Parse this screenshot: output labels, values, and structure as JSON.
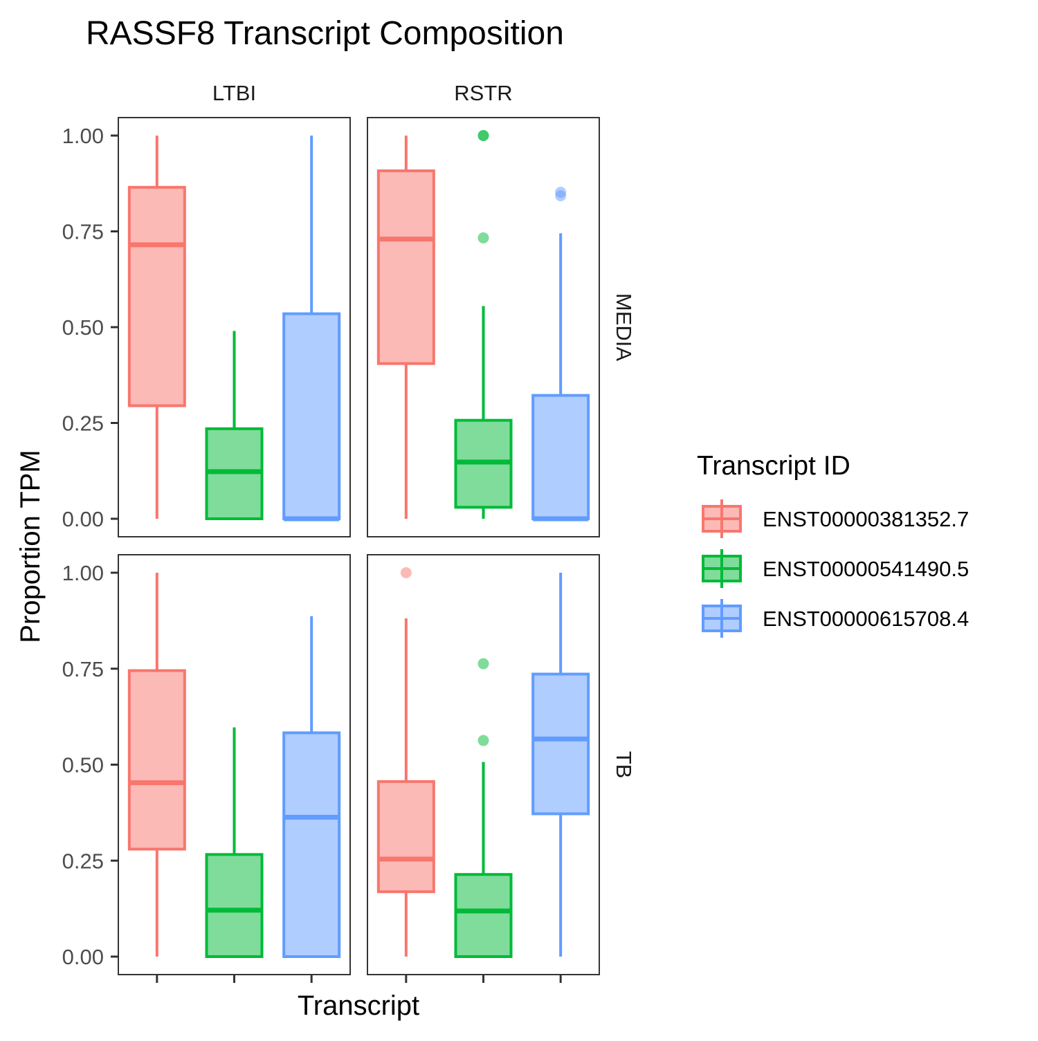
{
  "chart_data": {
    "type": "boxplot",
    "title": "RASSF8 Transcript Composition",
    "xlabel": "Transcript",
    "ylabel": "Proportion TPM",
    "ylim": [
      0,
      1
    ],
    "yticks": [
      "0.00",
      "0.25",
      "0.50",
      "0.75",
      "1.00"
    ],
    "col_facets": [
      "LTBI",
      "RSTR"
    ],
    "row_facets": [
      "MEDIA",
      "TB"
    ],
    "legend": {
      "title": "Transcript ID",
      "position": "right",
      "items": [
        {
          "label": "ENST00000381352.7",
          "color": "#F8766D"
        },
        {
          "label": "ENST00000541490.5",
          "color": "#00BA38"
        },
        {
          "label": "ENST00000615708.4",
          "color": "#619CFF"
        }
      ]
    },
    "grid": false,
    "panels": [
      {
        "col": "LTBI",
        "row": "MEDIA",
        "boxes": [
          {
            "series": "ENST00000381352.7",
            "min": 0.0,
            "q1": 0.295,
            "median": 0.715,
            "q3": 0.865,
            "max": 1.0,
            "outliers": []
          },
          {
            "series": "ENST00000541490.5",
            "min": 0.0,
            "q1": 0.0,
            "median": 0.123,
            "q3": 0.235,
            "max": 0.49,
            "outliers": []
          },
          {
            "series": "ENST00000615708.4",
            "min": 0.0,
            "q1": 0.0,
            "median": 0.0,
            "q3": 0.535,
            "max": 1.0,
            "outliers": []
          }
        ]
      },
      {
        "col": "RSTR",
        "row": "MEDIA",
        "boxes": [
          {
            "series": "ENST00000381352.7",
            "min": 0.0,
            "q1": 0.405,
            "median": 0.73,
            "q3": 0.908,
            "max": 1.0,
            "outliers": []
          },
          {
            "series": "ENST00000541490.5",
            "min": 0.0,
            "q1": 0.03,
            "median": 0.148,
            "q3": 0.257,
            "max": 0.555,
            "outliers": [
              0.733,
              1.0,
              1.0
            ]
          },
          {
            "series": "ENST00000615708.4",
            "min": 0.0,
            "q1": 0.0,
            "median": 0.0,
            "q3": 0.322,
            "max": 0.745,
            "outliers": [
              0.843,
              0.852
            ]
          }
        ]
      },
      {
        "col": "LTBI",
        "row": "TB",
        "boxes": [
          {
            "series": "ENST00000381352.7",
            "min": 0.0,
            "q1": 0.28,
            "median": 0.453,
            "q3": 0.745,
            "max": 1.0,
            "outliers": []
          },
          {
            "series": "ENST00000541490.5",
            "min": 0.0,
            "q1": 0.0,
            "median": 0.121,
            "q3": 0.266,
            "max": 0.597,
            "outliers": []
          },
          {
            "series": "ENST00000615708.4",
            "min": 0.0,
            "q1": 0.0,
            "median": 0.363,
            "q3": 0.583,
            "max": 0.887,
            "outliers": []
          }
        ]
      },
      {
        "col": "RSTR",
        "row": "TB",
        "boxes": [
          {
            "series": "ENST00000381352.7",
            "min": 0.0,
            "q1": 0.169,
            "median": 0.254,
            "q3": 0.456,
            "max": 0.881,
            "outliers": [
              1.0
            ]
          },
          {
            "series": "ENST00000541490.5",
            "min": 0.0,
            "q1": 0.0,
            "median": 0.119,
            "q3": 0.214,
            "max": 0.507,
            "outliers": [
              0.563,
              0.763
            ]
          },
          {
            "series": "ENST00000615708.4",
            "min": 0.0,
            "q1": 0.372,
            "median": 0.567,
            "q3": 0.736,
            "max": 1.0,
            "outliers": []
          }
        ]
      }
    ]
  }
}
